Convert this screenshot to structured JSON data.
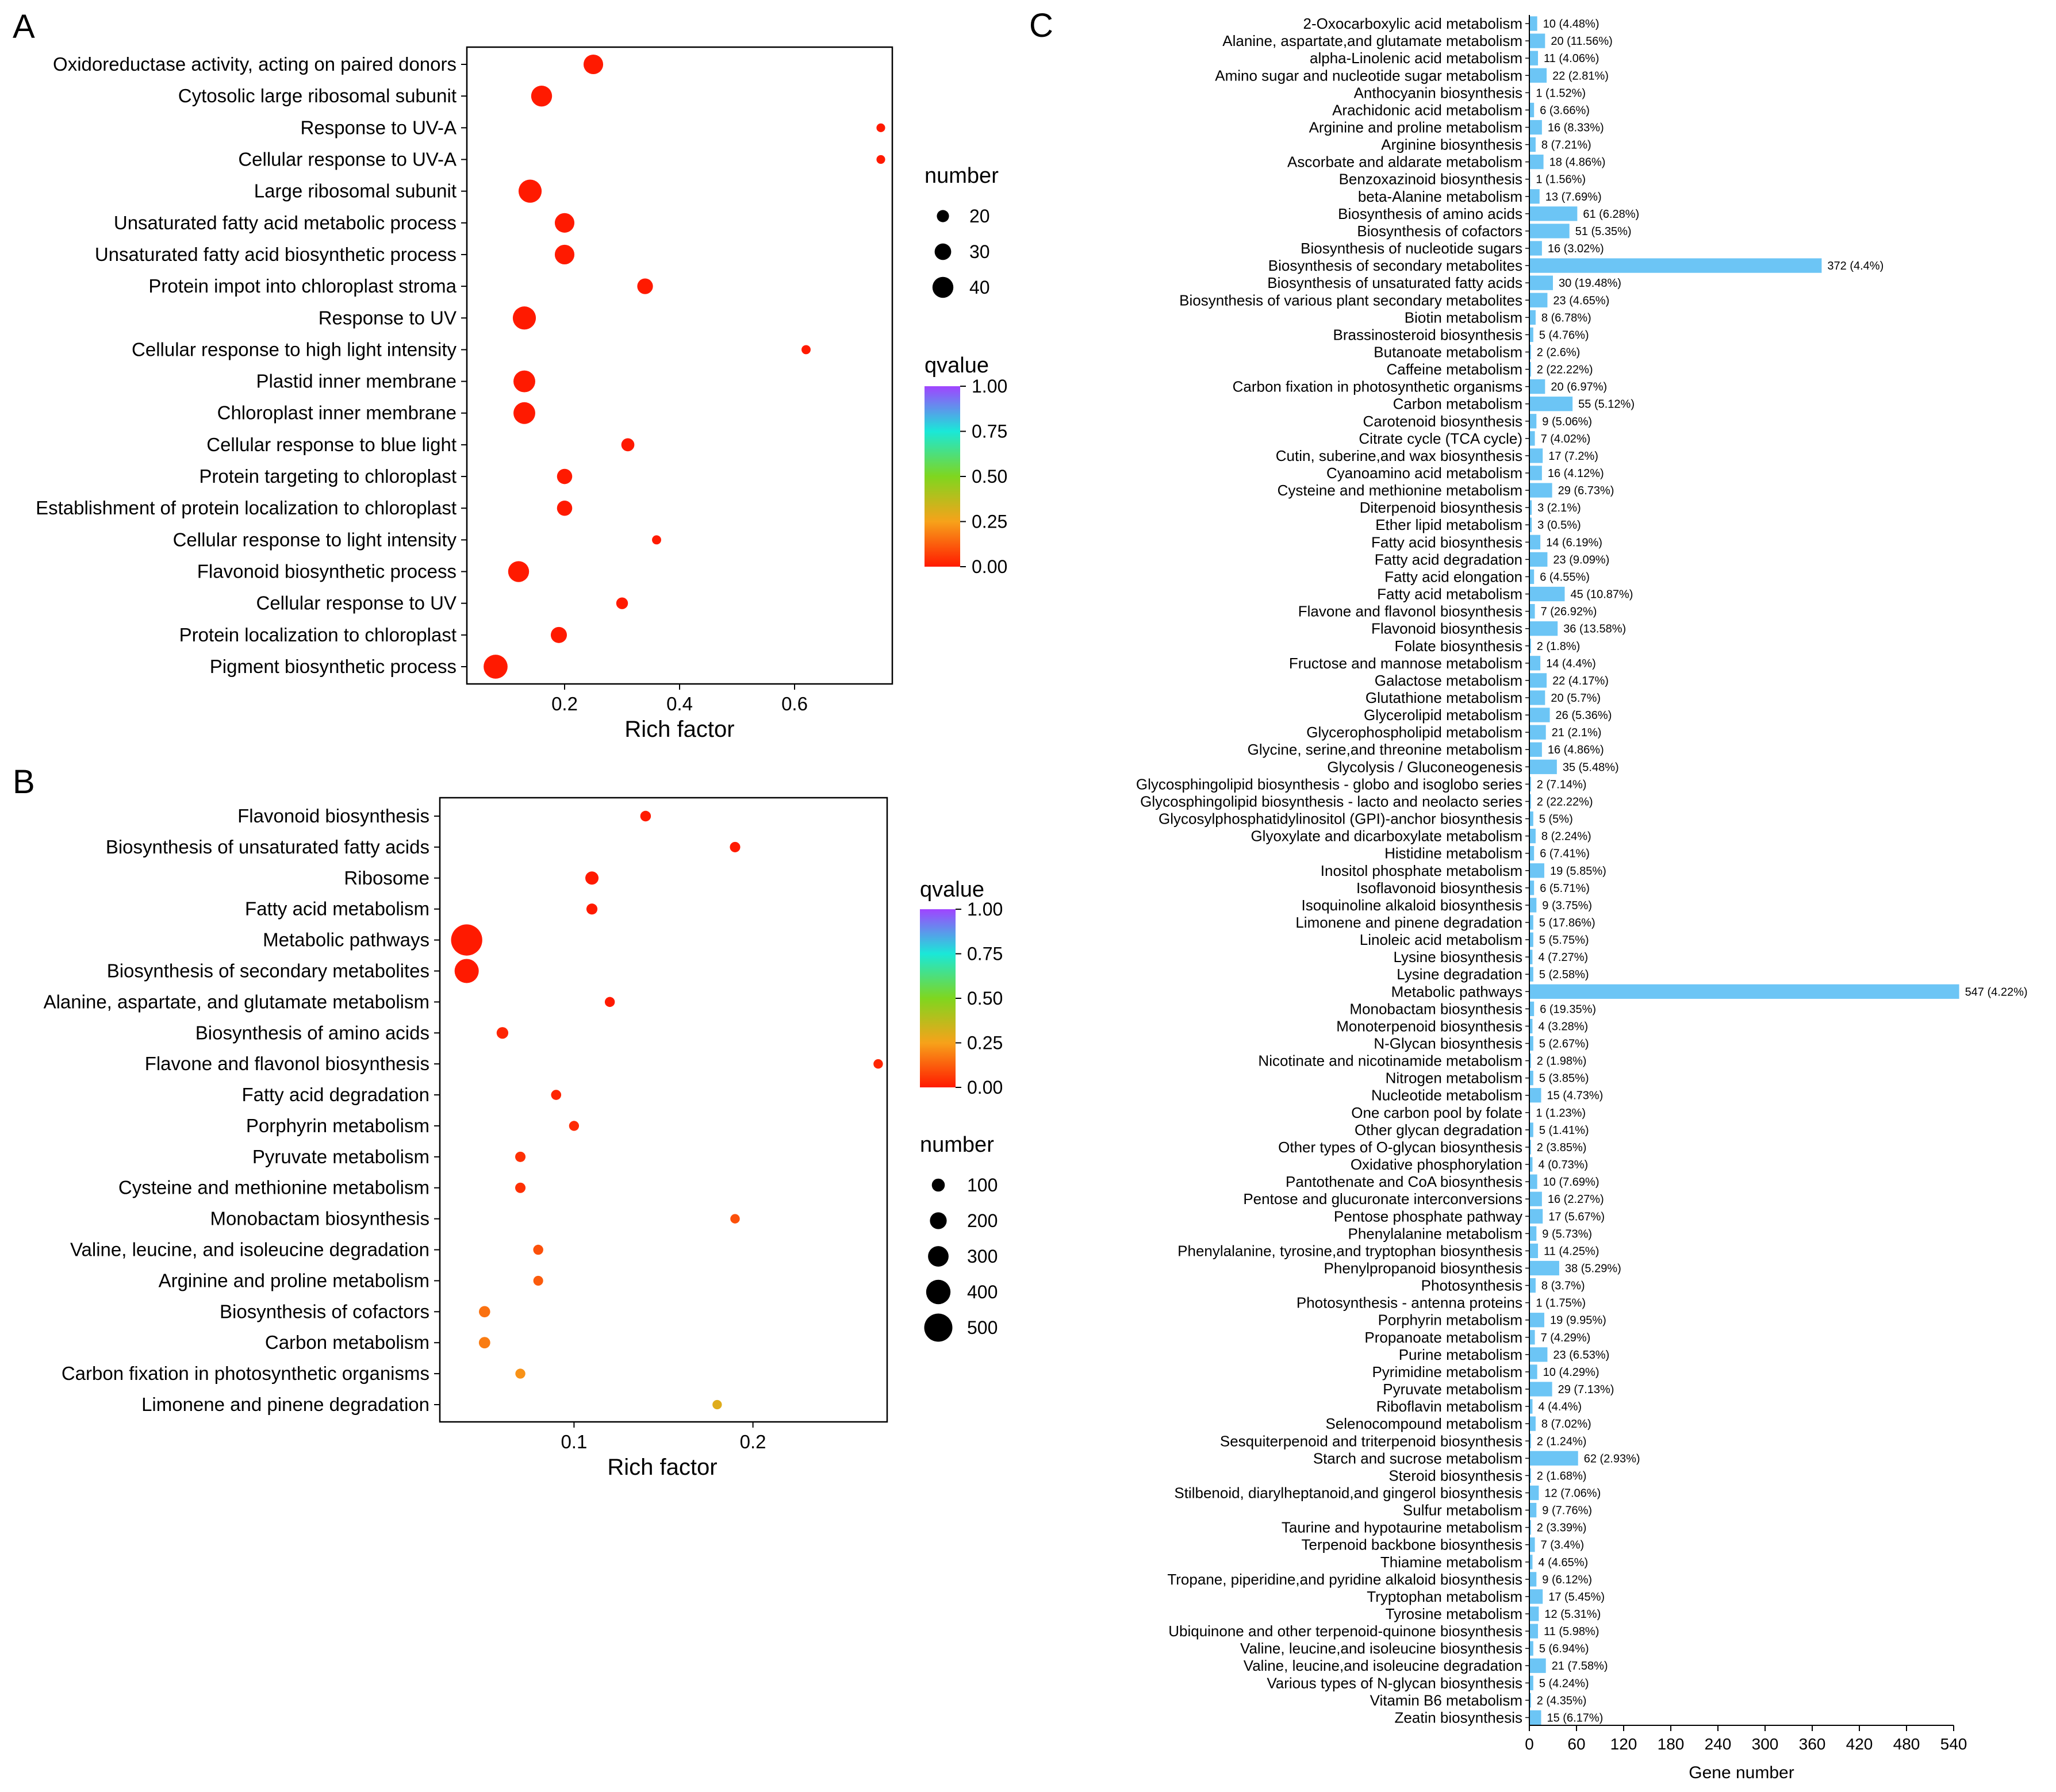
{
  "figure_labels": {
    "a": "A",
    "b": "B",
    "c": "C"
  },
  "chart_data": [
    {
      "panel": "A",
      "type": "scatter",
      "xlabel": "Rich factor",
      "xlim": [
        0.03,
        0.77
      ],
      "xticks": [
        "0.2",
        "0.4",
        "0.6"
      ],
      "xtick_values": [
        0.2,
        0.4,
        0.6
      ],
      "legend_size_title": "number",
      "legend_size_values": [
        20,
        30,
        40
      ],
      "legend_color_title": "qvalue",
      "legend_color_ticks": [
        "1.00",
        "0.75",
        "0.50",
        "0.25",
        "0.00"
      ],
      "terms": [
        {
          "label": "Oxidoreductase activity, acting on paired donors",
          "x": 0.25,
          "n": 37,
          "q": 0.0
        },
        {
          "label": "Cytosolic large ribosomal subunit",
          "x": 0.16,
          "n": 40,
          "q": 0.0
        },
        {
          "label": "Response to UV-A",
          "x": 0.75,
          "n": 12,
          "q": 0.0
        },
        {
          "label": "Cellular response to UV-A",
          "x": 0.75,
          "n": 12,
          "q": 0.0
        },
        {
          "label": "Large ribosomal subunit",
          "x": 0.14,
          "n": 45,
          "q": 0.0
        },
        {
          "label": "Unsaturated fatty acid metabolic process",
          "x": 0.2,
          "n": 37,
          "q": 0.0
        },
        {
          "label": "Unsaturated fatty acid biosynthetic process",
          "x": 0.2,
          "n": 37,
          "q": 0.0
        },
        {
          "label": "Protein impot into chloroplast stroma",
          "x": 0.34,
          "n": 28,
          "q": 0.0
        },
        {
          "label": "Response to UV",
          "x": 0.13,
          "n": 45,
          "q": 0.0
        },
        {
          "label": "Cellular response to high light intensity",
          "x": 0.62,
          "n": 13,
          "q": 0.0
        },
        {
          "label": "Plastid inner membrane",
          "x": 0.13,
          "n": 42,
          "q": 0.0
        },
        {
          "label": "Chloroplast inner membrane",
          "x": 0.13,
          "n": 42,
          "q": 0.0
        },
        {
          "label": "Cellular response to blue light",
          "x": 0.31,
          "n": 22,
          "q": 0.0
        },
        {
          "label": "Protein targeting to chloroplast",
          "x": 0.2,
          "n": 27,
          "q": 0.0
        },
        {
          "label": "Establishment of protein localization to chloroplast",
          "x": 0.2,
          "n": 27,
          "q": 0.0
        },
        {
          "label": "Cellular response to light intensity",
          "x": 0.36,
          "n": 13,
          "q": 0.0
        },
        {
          "label": "Flavonoid biosynthetic process",
          "x": 0.12,
          "n": 40,
          "q": 0.0
        },
        {
          "label": "Cellular response to UV",
          "x": 0.3,
          "n": 19,
          "q": 0.0
        },
        {
          "label": "Protein localization to chloroplast",
          "x": 0.19,
          "n": 29,
          "q": 0.0
        },
        {
          "label": "Pigment biosynthetic process",
          "x": 0.08,
          "n": 47,
          "q": 0.0
        }
      ]
    },
    {
      "panel": "B",
      "type": "scatter",
      "xlabel": "Rich factor",
      "xlim": [
        0.025,
        0.275
      ],
      "xticks": [
        "0.1",
        "0.2"
      ],
      "xtick_values": [
        0.1,
        0.2
      ],
      "legend_color_title": "qvalue",
      "legend_color_ticks": [
        "1.00",
        "0.75",
        "0.50",
        "0.25",
        "0.00"
      ],
      "legend_size_title": "number",
      "legend_size_values": [
        100,
        200,
        300,
        400,
        500
      ],
      "terms": [
        {
          "label": "Flavonoid biosynthesis",
          "x": 0.14,
          "n": 36,
          "q": 0.0
        },
        {
          "label": "Biosynthesis of unsaturated fatty acids",
          "x": 0.19,
          "n": 30,
          "q": 0.0
        },
        {
          "label": "Ribosome",
          "x": 0.11,
          "n": 100,
          "q": 0.0
        },
        {
          "label": "Fatty acid metabolism",
          "x": 0.11,
          "n": 45,
          "q": 0.0
        },
        {
          "label": "Metabolic pathways",
          "x": 0.04,
          "n": 547,
          "q": 0.0
        },
        {
          "label": "Biosynthesis of secondary metabolites",
          "x": 0.04,
          "n": 372,
          "q": 0.0
        },
        {
          "label": "Alanine, aspartate, and glutamate metabolism",
          "x": 0.12,
          "n": 20,
          "q": 0.0
        },
        {
          "label": "Biosynthesis of amino acids",
          "x": 0.06,
          "n": 61,
          "q": 0.02
        },
        {
          "label": "Flavone and flavonol biosynthesis",
          "x": 0.27,
          "n": 7,
          "q": 0.02
        },
        {
          "label": "Fatty acid degradation",
          "x": 0.09,
          "n": 23,
          "q": 0.02
        },
        {
          "label": "Porphyrin metabolism",
          "x": 0.1,
          "n": 19,
          "q": 0.03
        },
        {
          "label": "Pyruvate metabolism",
          "x": 0.07,
          "n": 29,
          "q": 0.04
        },
        {
          "label": "Cysteine and methionine metabolism",
          "x": 0.07,
          "n": 29,
          "q": 0.04
        },
        {
          "label": "Monobactam biosynthesis",
          "x": 0.19,
          "n": 6,
          "q": 0.1
        },
        {
          "label": "Valine, leucine, and isoleucine degradation",
          "x": 0.08,
          "n": 21,
          "q": 0.1
        },
        {
          "label": "Arginine and proline metabolism",
          "x": 0.08,
          "n": 16,
          "q": 0.12
        },
        {
          "label": "Biosynthesis of cofactors",
          "x": 0.05,
          "n": 51,
          "q": 0.16
        },
        {
          "label": "Carbon metabolism",
          "x": 0.05,
          "n": 55,
          "q": 0.18
        },
        {
          "label": "Carbon fixation in photosynthetic organisms",
          "x": 0.07,
          "n": 20,
          "q": 0.22
        },
        {
          "label": "Limonene and pinene degradation",
          "x": 0.18,
          "n": 5,
          "q": 0.3
        }
      ]
    },
    {
      "panel": "C",
      "type": "bar",
      "orientation": "horizontal",
      "color": "#6cc5f5",
      "xlabel": "Gene number",
      "xlim": [
        0,
        540
      ],
      "xticks": [
        "0",
        "60",
        "120",
        "180",
        "240",
        "300",
        "360",
        "420",
        "480",
        "540"
      ],
      "xtick_values": [
        0,
        60,
        120,
        180,
        240,
        300,
        360,
        420,
        480,
        540
      ],
      "categories": [
        "2-Oxocarboxylic acid metabolism",
        "Alanine, aspartate,and glutamate metabolism",
        "alpha-Linolenic acid metabolism",
        "Amino sugar and nucleotide sugar metabolism",
        "Anthocyanin biosynthesis",
        "Arachidonic acid metabolism",
        "Arginine and proline metabolism",
        "Arginine biosynthesis",
        "Ascorbate and aldarate metabolism",
        "Benzoxazinoid biosynthesis",
        "beta-Alanine metabolism",
        "Biosynthesis of amino acids",
        "Biosynthesis of cofactors",
        "Biosynthesis of nucleotide sugars",
        "Biosynthesis of secondary metabolites",
        "Biosynthesis of unsaturated fatty acids",
        "Biosynthesis of various plant secondary metabolites",
        "Biotin metabolism",
        "Brassinosteroid biosynthesis",
        "Butanoate metabolism",
        "Caffeine metabolism",
        "Carbon fixation in photosynthetic organisms",
        "Carbon metabolism",
        "Carotenoid biosynthesis",
        "Citrate cycle (TCA cycle)",
        "Cutin, suberine,and wax biosynthesis",
        "Cyanoamino acid metabolism",
        "Cysteine and methionine metabolism",
        "Diterpenoid biosynthesis",
        "Ether lipid metabolism",
        "Fatty acid biosynthesis",
        "Fatty acid degradation",
        "Fatty acid elongation",
        "Fatty acid metabolism",
        "Flavone and flavonol biosynthesis",
        "Flavonoid biosynthesis",
        "Folate biosynthesis",
        "Fructose and mannose metabolism",
        "Galactose metabolism",
        "Glutathione metabolism",
        "Glycerolipid metabolism",
        "Glycerophospholipid metabolism",
        "Glycine, serine,and threonine metabolism",
        "Glycolysis / Gluconeogenesis",
        "Glycosphingolipid biosynthesis - globo and isoglobo series",
        "Glycosphingolipid biosynthesis - lacto and neolacto series",
        "Glycosylphosphatidylinositol (GPI)-anchor biosynthesis",
        "Glyoxylate and dicarboxylate metabolism",
        "Histidine metabolism",
        "Inositol phosphate metabolism",
        "Isoflavonoid biosynthesis",
        "Isoquinoline alkaloid biosynthesis",
        "Limonene and pinene degradation",
        "Linoleic acid metabolism",
        "Lysine biosynthesis",
        "Lysine degradation",
        "Metabolic pathways",
        "Monobactam biosynthesis",
        "Monoterpenoid biosynthesis",
        "N-Glycan biosynthesis",
        "Nicotinate and nicotinamide metabolism",
        "Nitrogen metabolism",
        "Nucleotide metabolism",
        "One carbon pool by folate",
        "Other glycan degradation",
        "Other types of O-glycan biosynthesis",
        "Oxidative phosphorylation",
        "Pantothenate and CoA biosynthesis",
        "Pentose and glucuronate interconversions",
        "Pentose phosphate pathway",
        "Phenylalanine metabolism",
        "Phenylalanine, tyrosine,and tryptophan biosynthesis",
        "Phenylpropanoid biosynthesis",
        "Photosynthesis",
        "Photosynthesis - antenna proteins",
        "Porphyrin metabolism",
        "Propanoate metabolism",
        "Purine metabolism",
        "Pyrimidine metabolism",
        "Pyruvate metabolism",
        "Riboflavin metabolism",
        "Selenocompound metabolism",
        "Sesquiterpenoid and triterpenoid biosynthesis",
        "Starch and sucrose metabolism",
        "Steroid biosynthesis",
        "Stilbenoid, diarylheptanoid,and gingerol biosynthesis",
        "Sulfur metabolism",
        "Taurine and hypotaurine metabolism",
        "Terpenoid backbone biosynthesis",
        "Thiamine metabolism",
        "Tropane, piperidine,and pyridine alkaloid biosynthesis",
        "Tryptophan metabolism",
        "Tyrosine metabolism",
        "Ubiquinone and other terpenoid-quinone biosynthesis",
        "Valine, leucine,and isoleucine biosynthesis",
        "Valine, leucine,and isoleucine degradation",
        "Various types of N-glycan biosynthesis",
        "Vitamin B6 metabolism",
        "Zeatin biosynthesis"
      ],
      "values": [
        10,
        20,
        11,
        22,
        1,
        6,
        16,
        8,
        18,
        1,
        13,
        61,
        51,
        16,
        372,
        30,
        23,
        8,
        5,
        2,
        2,
        20,
        55,
        9,
        7,
        17,
        16,
        29,
        3,
        3,
        14,
        23,
        6,
        45,
        7,
        36,
        2,
        14,
        22,
        20,
        26,
        21,
        16,
        35,
        2,
        2,
        5,
        8,
        6,
        19,
        6,
        9,
        5,
        5,
        4,
        5,
        547,
        6,
        4,
        5,
        2,
        5,
        15,
        1,
        5,
        2,
        4,
        10,
        16,
        17,
        9,
        11,
        38,
        8,
        1,
        19,
        7,
        23,
        10,
        29,
        4,
        8,
        2,
        62,
        2,
        12,
        9,
        2,
        7,
        4,
        9,
        17,
        12,
        11,
        5,
        21,
        5,
        2,
        15
      ],
      "data_labels": [
        "10 (4.48%)",
        "20 (11.56%)",
        "11 (4.06%)",
        "22 (2.81%)",
        "1 (1.52%)",
        "6 (3.66%)",
        "16 (8.33%)",
        "8 (7.21%)",
        "18 (4.86%)",
        "1 (1.56%)",
        "13 (7.69%)",
        "61 (6.28%)",
        "51 (5.35%)",
        "16 (3.02%)",
        "372 (4.4%)",
        "30 (19.48%)",
        "23 (4.65%)",
        "8 (6.78%)",
        "5 (4.76%)",
        "2 (2.6%)",
        "2 (22.22%)",
        "20 (6.97%)",
        "55 (5.12%)",
        "9 (5.06%)",
        "7 (4.02%)",
        "17 (7.2%)",
        "16 (4.12%)",
        "29 (6.73%)",
        "3 (2.1%)",
        "3 (0.5%)",
        "14 (6.19%)",
        "23 (9.09%)",
        "6 (4.55%)",
        "45 (10.87%)",
        "7 (26.92%)",
        "36 (13.58%)",
        "2 (1.8%)",
        "14 (4.4%)",
        "22 (4.17%)",
        "20 (5.7%)",
        "26 (5.36%)",
        "21 (2.1%)",
        "16 (4.86%)",
        "35 (5.48%)",
        "2 (7.14%)",
        "2 (22.22%)",
        "5 (5%)",
        "8 (2.24%)",
        "6 (7.41%)",
        "19 (5.85%)",
        "6 (5.71%)",
        "9 (3.75%)",
        "5 (17.86%)",
        "5 (5.75%)",
        "4 (7.27%)",
        "5 (2.58%)",
        "547 (4.22%)",
        "6 (19.35%)",
        "4 (3.28%)",
        "5 (2.67%)",
        "2 (1.98%)",
        "5 (3.85%)",
        "15 (4.73%)",
        "1 (1.23%)",
        "5 (1.41%)",
        "2 (3.85%)",
        "4 (0.73%)",
        "10 (7.69%)",
        "16 (2.27%)",
        "17 (5.67%)",
        "9 (5.73%)",
        "11 (4.25%)",
        "38 (5.29%)",
        "8 (3.7%)",
        "1 (1.75%)",
        "19 (9.95%)",
        "7 (4.29%)",
        "23 (6.53%)",
        "10 (4.29%)",
        "29 (7.13%)",
        "4 (4.4%)",
        "8 (7.02%)",
        "2 (1.24%)",
        "62 (2.93%)",
        "2 (1.68%)",
        "12 (7.06%)",
        "9 (7.76%)",
        "2 (3.39%)",
        "7 (3.4%)",
        "4 (4.65%)",
        "9 (6.12%)",
        "17 (5.45%)",
        "12 (5.31%)",
        "11 (5.98%)",
        "5 (6.94%)",
        "21 (7.58%)",
        "5 (4.24%)",
        "2 (4.35%)",
        "15 (6.17%)"
      ]
    }
  ]
}
